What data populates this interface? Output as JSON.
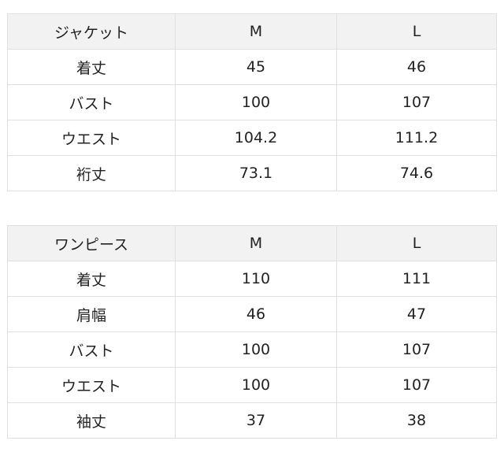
{
  "tables": [
    {
      "header": [
        "ジャケット",
        "M",
        "L"
      ],
      "rows": [
        [
          "着丈",
          "45",
          "46"
        ],
        [
          "バスト",
          "100",
          "107"
        ],
        [
          "ウエスト",
          "104.2",
          "111.2"
        ],
        [
          "裄丈",
          "73.1",
          "74.6"
        ]
      ]
    },
    {
      "header": [
        "ワンピース",
        "M",
        "L"
      ],
      "rows": [
        [
          "着丈",
          "110",
          "111"
        ],
        [
          "肩幅",
          "46",
          "47"
        ],
        [
          "バスト",
          "100",
          "107"
        ],
        [
          "ウエスト",
          "100",
          "107"
        ],
        [
          "袖丈",
          "37",
          "38"
        ]
      ]
    }
  ]
}
